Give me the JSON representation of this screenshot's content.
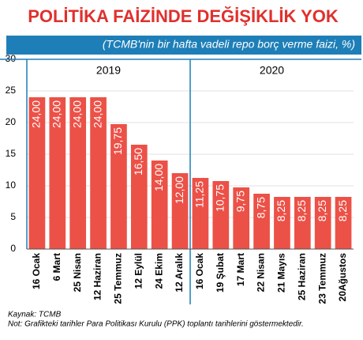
{
  "chart_data": {
    "type": "bar",
    "title": "POLİTİKA FAİZİNDE DEĞİŞİKLİK YOK",
    "subtitle": "(TCMB'nin bir hafta vadeli repo borç verme faizi, %)",
    "annotations": [
      "2019",
      "2020"
    ],
    "categories": [
      "16 Ocak",
      "6 Mart",
      "25 Nisan",
      "12 Haziran",
      "25 Temmuz",
      "12 Eylül",
      "24 Ekim",
      "12 Aralık",
      "16 Ocak",
      "19 Şubat",
      "17 Mart",
      "22 Nisan",
      "21 Mayıs",
      "25 Haziran",
      "23 Temmuz",
      "20Ağustos"
    ],
    "values": [
      24,
      24,
      24,
      24,
      19.75,
      16.5,
      14,
      12,
      11.25,
      10.75,
      9.75,
      8.75,
      8.25,
      8.25,
      8.25,
      8.25
    ],
    "value_labels": [
      "24,00",
      "24,00",
      "24,00",
      "24,00",
      "19,75",
      "16,50",
      "14,00",
      "12,00",
      "11,25",
      "10,75",
      "9,75",
      "8,75",
      "8,25",
      "8,25",
      "8,25",
      "8,25"
    ],
    "color": "#ec5147",
    "ylim": [
      0,
      30
    ],
    "yticks": [
      0,
      5,
      10,
      15,
      20,
      25,
      30
    ],
    "grid": true,
    "notes": [
      "Kaynak: TCMB",
      "Not: Grafikteki tarihler Para Politikası Kurulu (PPK) toplantı tarihlerini göstermektedir."
    ]
  }
}
